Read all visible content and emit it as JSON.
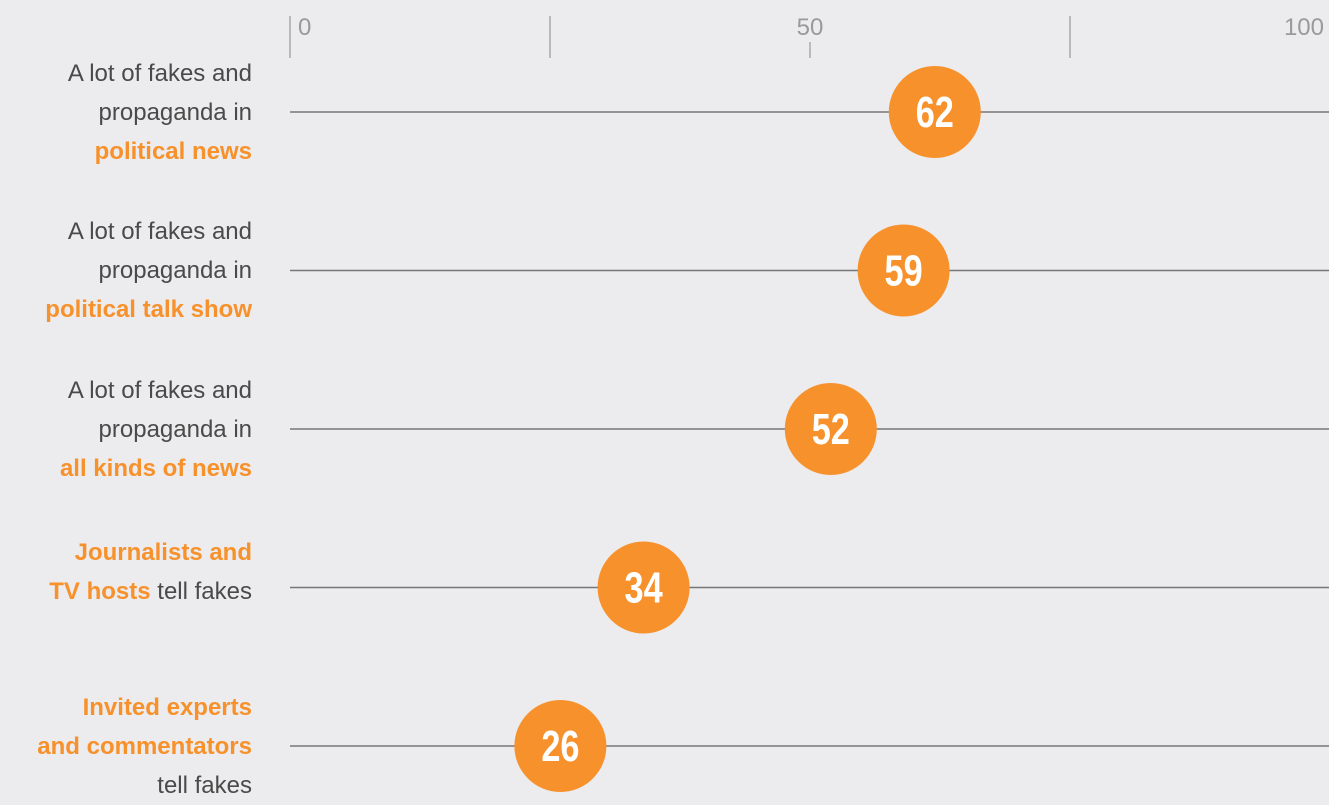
{
  "chart_data": {
    "type": "dot",
    "categories": [
      [
        {
          "text": "A lot of fakes and\npropaganda in\n",
          "bold": false
        },
        {
          "text": "political news",
          "bold": true
        }
      ],
      [
        {
          "text": "A lot of fakes and\npropaganda in\n",
          "bold": false
        },
        {
          "text": "political talk show",
          "bold": true
        }
      ],
      [
        {
          "text": "A lot of fakes and\npropaganda in\n",
          "bold": false
        },
        {
          "text": "all kinds of news",
          "bold": true
        }
      ],
      [
        {
          "text": "Journalists and\nTV hosts",
          "bold": true
        },
        {
          "text": " tell fakes",
          "bold": false
        }
      ],
      [
        {
          "text": "Invited experts\nand commentators",
          "bold": true
        },
        {
          "text": "\ntell fakes",
          "bold": false
        }
      ]
    ],
    "values": [
      62,
      59,
      52,
      34,
      26
    ],
    "color": "#f7912b",
    "highlight_color": "#f7912b",
    "xlim": [
      0,
      100
    ],
    "xticks": [
      0,
      50,
      100
    ],
    "minor_xticks": [
      25,
      75
    ]
  }
}
